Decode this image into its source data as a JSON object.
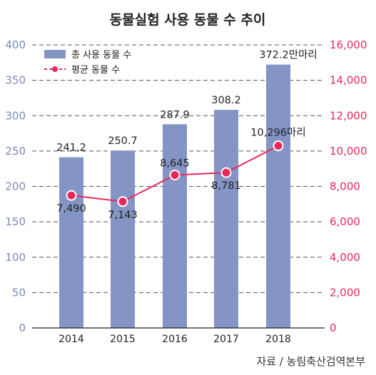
{
  "chart_data": {
    "type": "bar+line",
    "title": "동물실험 사용 동물 수 추이",
    "categories": [
      "2014",
      "2015",
      "2016",
      "2017",
      "2018"
    ],
    "series": [
      {
        "name": "총 사용 동물 수",
        "axis": "left",
        "kind": "bar",
        "values": [
          241.2,
          250.7,
          287.9,
          308.2,
          372.2
        ],
        "labels": [
          "241.2",
          "250.7",
          "287.9",
          "308.2",
          "372.2만마리"
        ]
      },
      {
        "name": "평균 동물 수",
        "axis": "right",
        "kind": "line",
        "values": [
          7490,
          7143,
          8645,
          8781,
          10296
        ],
        "labels": [
          "7,490",
          "7,143",
          "8,645",
          "8,781",
          "10,296마리"
        ]
      }
    ],
    "y_left": {
      "min": 0,
      "max": 400,
      "ticks": [
        "0",
        "50",
        "100",
        "150",
        "200",
        "250",
        "300",
        "350",
        "400"
      ]
    },
    "y_right": {
      "min": 0,
      "max": 16000,
      "ticks": [
        "0",
        "2,000",
        "4,000",
        "6,000",
        "8,000",
        "10,000",
        "12,000",
        "14,000",
        "16,000"
      ]
    },
    "grid": true,
    "legend_position": "top-left",
    "colors": {
      "bar": "#8494c4",
      "line": "#e8285a",
      "left_axis": "#7b8bb8",
      "right_axis": "#e8285a",
      "grid": "#555555"
    }
  },
  "source": "자료 / 농림축산검역본부"
}
